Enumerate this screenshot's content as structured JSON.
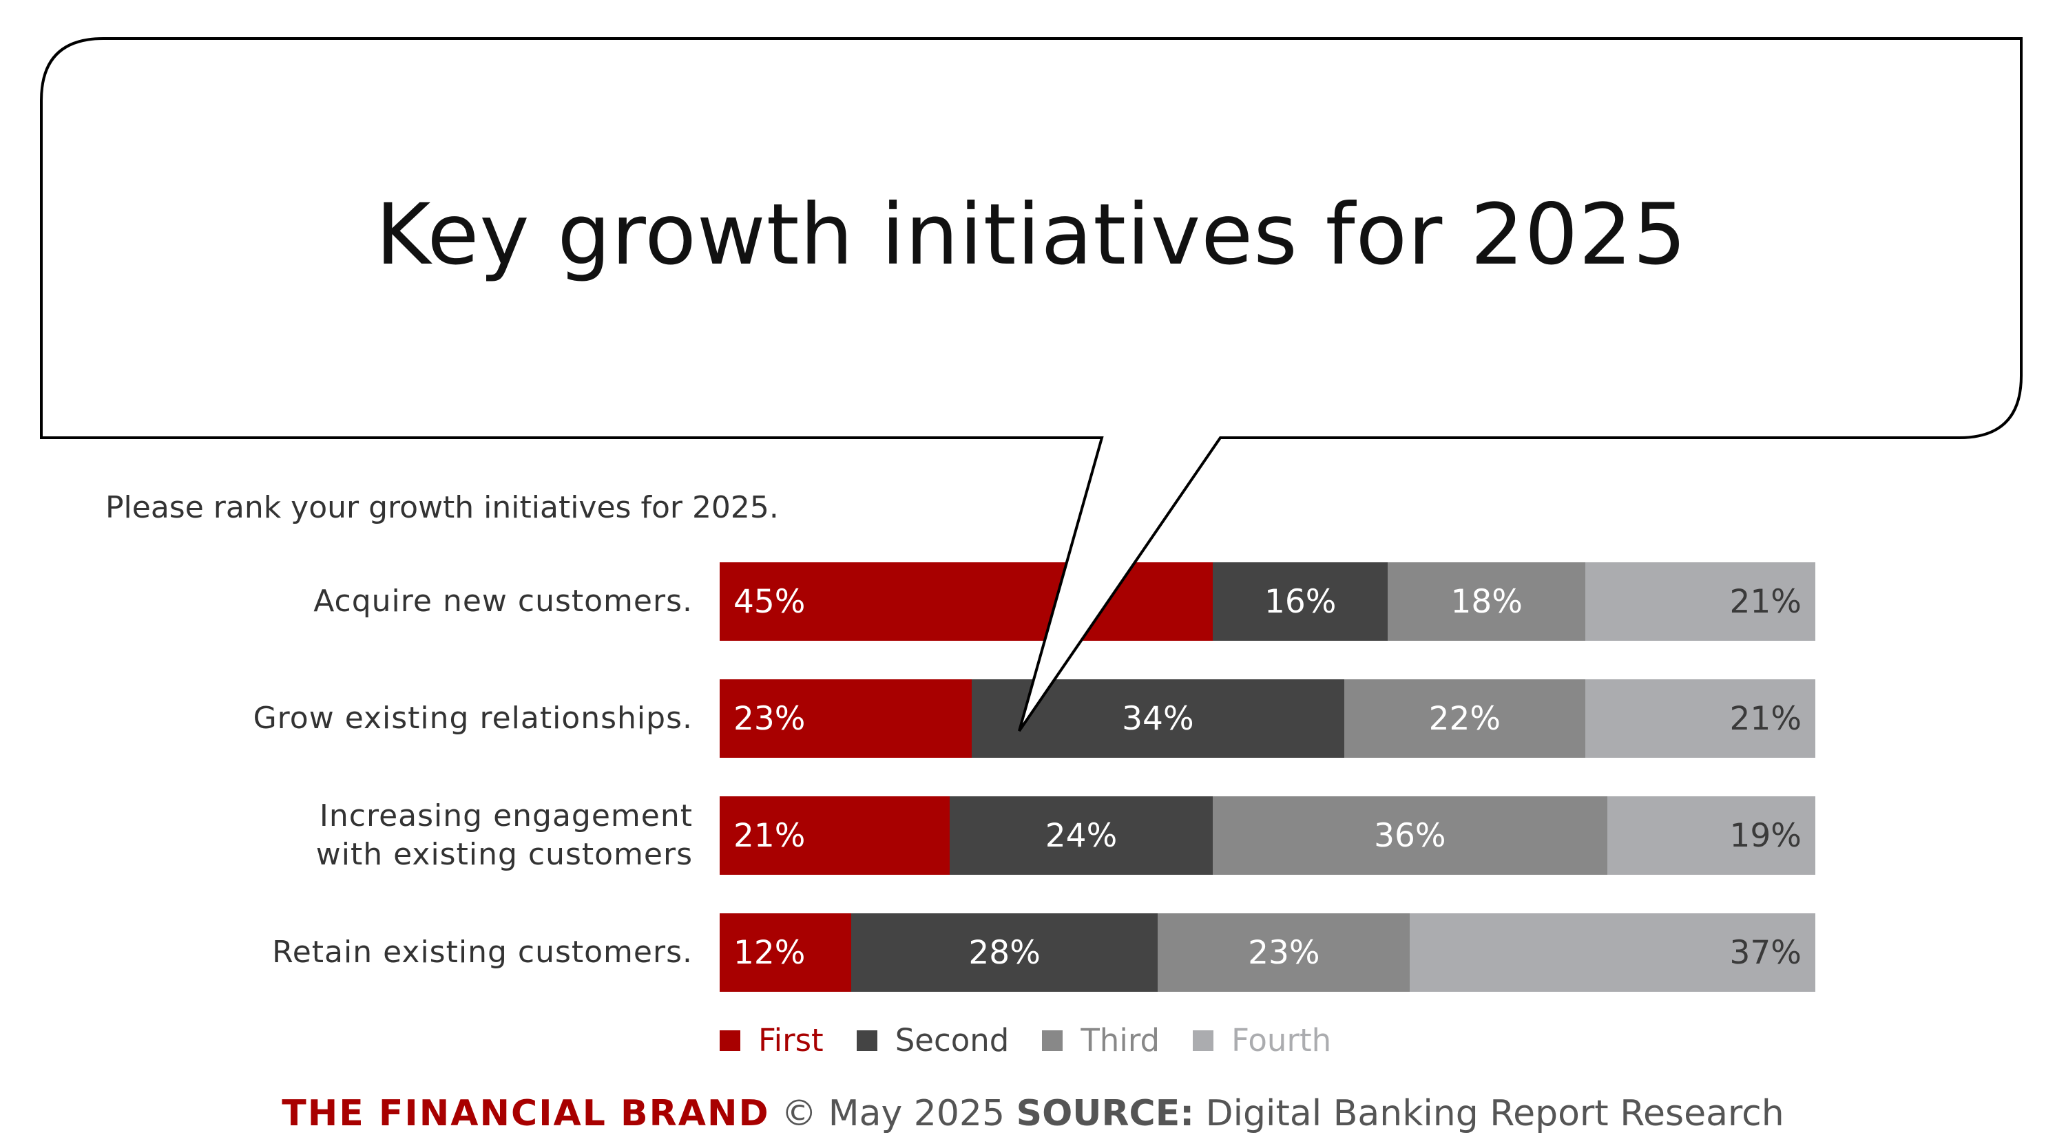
{
  "chart_data": {
    "type": "bar",
    "orientation": "horizontal-stacked-100",
    "title": "Key growth initiatives for 2025",
    "subtitle": "Please rank your growth initiatives for 2025.",
    "categories": [
      "Acquire new customers.",
      "Grow existing relationships.",
      "Increasing engagement with existing customers",
      "Retain existing customers."
    ],
    "series": [
      {
        "name": "First",
        "color": "#a80000",
        "values": [
          45,
          23,
          21,
          12
        ]
      },
      {
        "name": "Second",
        "color": "#444444",
        "values": [
          16,
          34,
          24,
          28
        ]
      },
      {
        "name": "Third",
        "color": "#888888",
        "values": [
          18,
          22,
          36,
          23
        ]
      },
      {
        "name": "Fourth",
        "color": "#abacaf",
        "values": [
          21,
          21,
          19,
          37
        ]
      }
    ],
    "value_suffix": "%",
    "xlim": [
      0,
      100
    ],
    "legend_placement": "bottom-left"
  },
  "footer": {
    "brand": "THE FINANCIAL BRAND",
    "date": "© May 2025",
    "source_label": "SOURCE:",
    "source": "Digital Banking Report Research"
  }
}
